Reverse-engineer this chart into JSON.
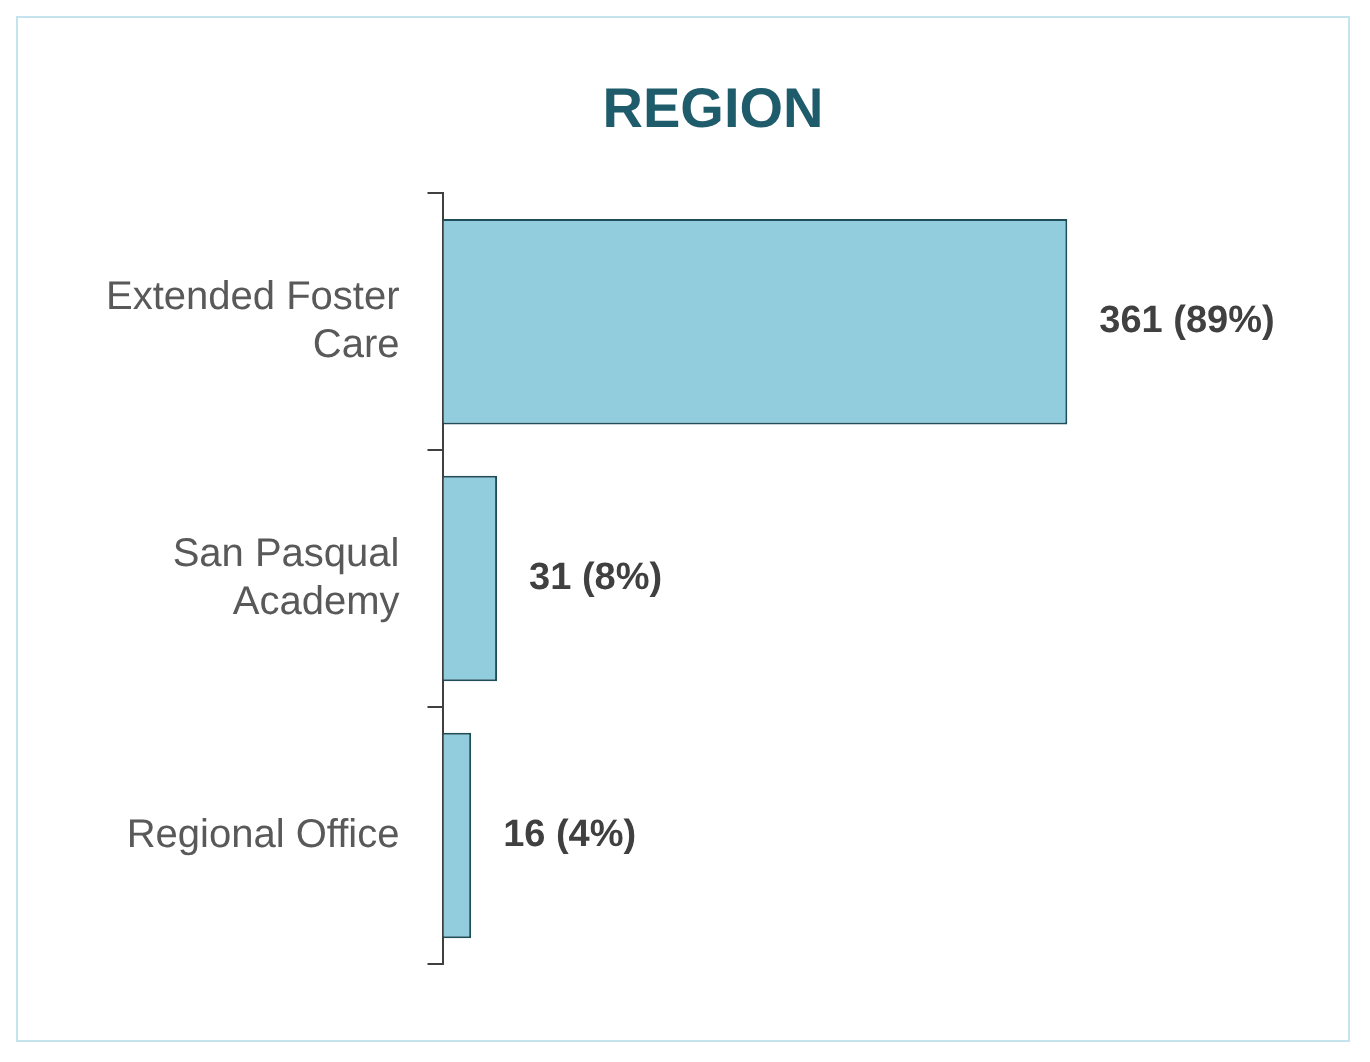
{
  "chart_data": {
    "type": "bar",
    "orientation": "horizontal",
    "title": "REGION",
    "categories": [
      "Extended Foster Care",
      "San Pasqual Academy",
      "Regional Office"
    ],
    "values": [
      361,
      31,
      16
    ],
    "value_labels": [
      "361 (89%)",
      "31 (8%)",
      "16 (4%)"
    ],
    "color": "#92cddd",
    "grid": false,
    "legend": false,
    "tick_labels": "y"
  }
}
